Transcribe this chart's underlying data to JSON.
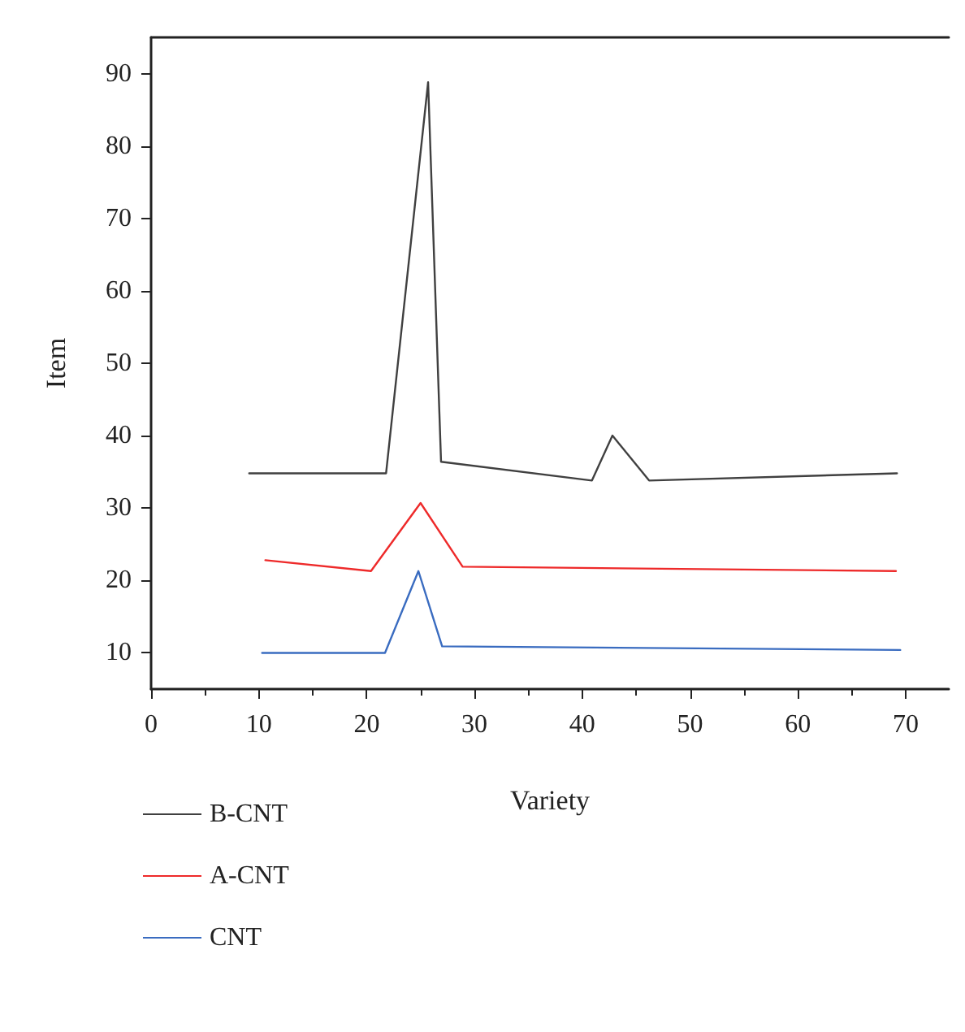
{
  "chart_data": {
    "type": "line",
    "xlabel": "Variety",
    "ylabel": "Item",
    "xlim": [
      0,
      74
    ],
    "xticks": [
      0,
      10,
      20,
      30,
      40,
      50,
      60,
      70
    ],
    "ylim": [
      5,
      95
    ],
    "yticks": [
      10,
      20,
      30,
      40,
      50,
      60,
      70,
      80,
      90
    ],
    "grid": false,
    "legend": "bottom left",
    "marker": "none",
    "line_style": "solid",
    "series": [
      {
        "name": "B-CNT",
        "color": "#404040",
        "x": [
          9.1,
          21.8,
          25.7,
          26.9,
          40.9,
          42.8,
          46.2,
          69.2
        ],
        "values": [
          34.8,
          34.8,
          88.8,
          36.4,
          33.8,
          40,
          33.8,
          34.8
        ]
      },
      {
        "name": "A-CNT",
        "color": "#ee2a2a",
        "x": [
          10.6,
          20.4,
          25.0,
          28.9,
          69.1
        ],
        "values": [
          22.8,
          21.3,
          30.7,
          21.9,
          21.3
        ]
      },
      {
        "name": "CNT",
        "color": "#3a6cc0",
        "x": [
          10.3,
          21.7,
          24.8,
          27.0,
          69.5
        ],
        "values": [
          10,
          10,
          21.3,
          10.9,
          10.4
        ]
      }
    ]
  }
}
